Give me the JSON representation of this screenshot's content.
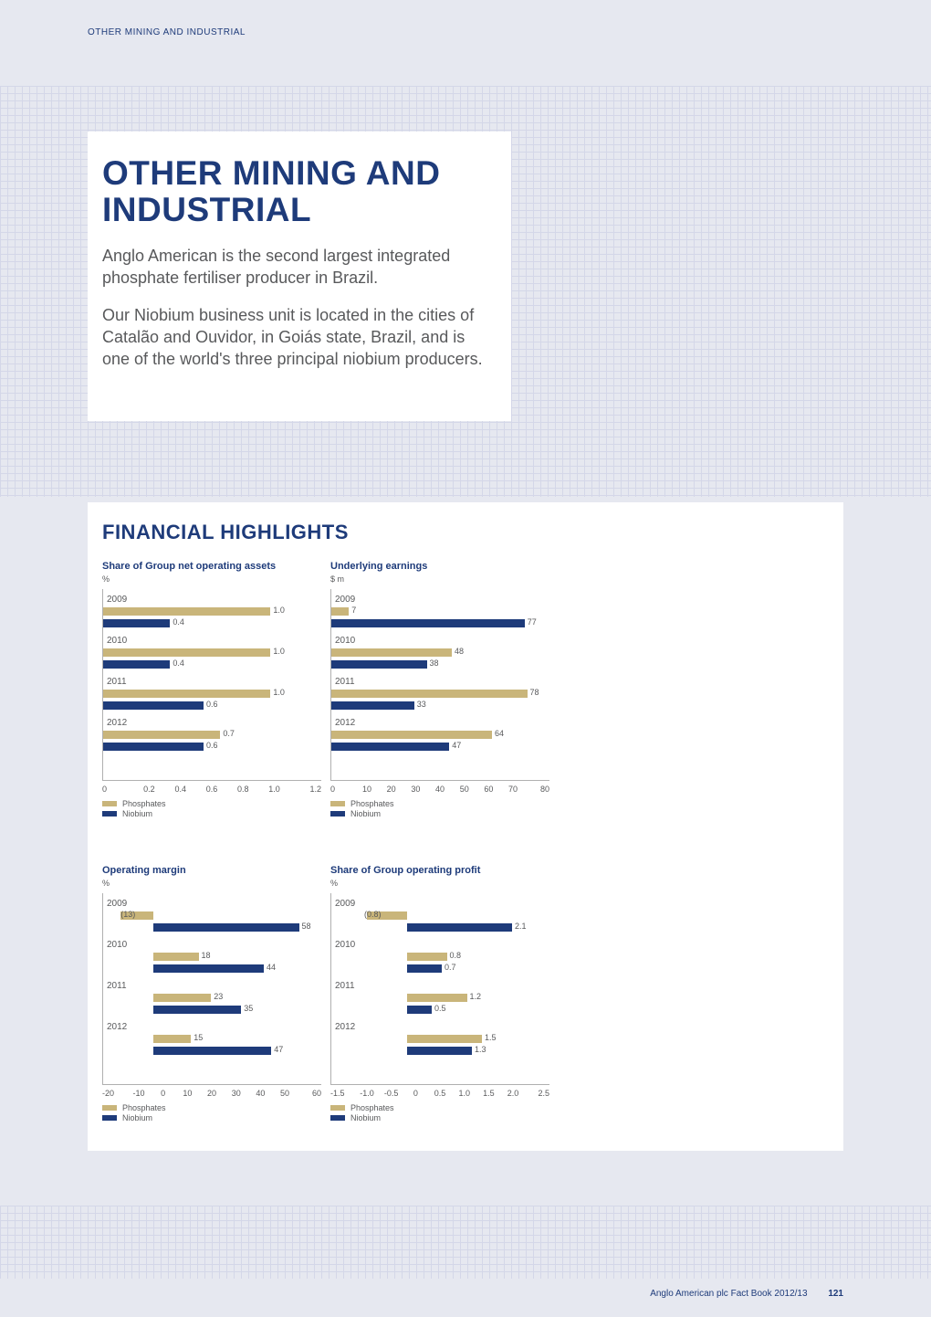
{
  "header": {
    "label": "OTHER MINING AND INDUSTRIAL"
  },
  "title_box": {
    "title": "OTHER MINING AND INDUSTRIAL",
    "para1": "Anglo American is the second largest integrated phosphate fertiliser producer in Brazil.",
    "para2": "Our Niobium business unit is located in the cities of Catalão and Ouvidor, in Goiás state, Brazil, and is one of the world's three principal niobium producers."
  },
  "highlights": {
    "heading": "FINANCIAL HIGHLIGHTS"
  },
  "colors": {
    "phosphates": "#c9b57a",
    "niobium": "#1e3b7a",
    "heading": "#1e3b7a",
    "text": "#58595b",
    "page_bg": "#e6e8f0"
  },
  "legend": {
    "phosphates": "Phosphates",
    "niobium": "Niobium"
  },
  "charts": [
    {
      "id": "net_assets",
      "title": "Share of Group net operating assets",
      "unit": "%",
      "xmin": 0,
      "xmax": 1.2,
      "xticks": [
        "0",
        "0.2",
        "0.4",
        "0.6",
        "0.8",
        "1.0",
        "1.2"
      ],
      "years": [
        {
          "year": "2009",
          "phos": 1.0,
          "niob": 0.4,
          "phos_label": "1.0",
          "niob_label": "0.4"
        },
        {
          "year": "2010",
          "phos": 1.0,
          "niob": 0.4,
          "phos_label": "1.0",
          "niob_label": "0.4"
        },
        {
          "year": "2011",
          "phos": 1.0,
          "niob": 0.6,
          "phos_label": "1.0",
          "niob_label": "0.6"
        },
        {
          "year": "2012",
          "phos": 0.7,
          "niob": 0.6,
          "phos_label": "0.7",
          "niob_label": "0.6"
        }
      ]
    },
    {
      "id": "earnings",
      "title": "Underlying earnings",
      "unit": "$ m",
      "xmin": 0,
      "xmax": 80,
      "xticks": [
        "0",
        "10",
        "20",
        "30",
        "40",
        "50",
        "60",
        "70",
        "80"
      ],
      "years": [
        {
          "year": "2009",
          "phos": 7,
          "niob": 77,
          "phos_label": "7",
          "niob_label": "77"
        },
        {
          "year": "2010",
          "phos": 48,
          "niob": 38,
          "phos_label": "48",
          "niob_label": "38"
        },
        {
          "year": "2011",
          "phos": 78,
          "niob": 33,
          "phos_label": "78",
          "niob_label": "33"
        },
        {
          "year": "2012",
          "phos": 64,
          "niob": 47,
          "phos_label": "64",
          "niob_label": "47"
        }
      ]
    },
    {
      "id": "margin",
      "title": "Operating margin",
      "unit": "%",
      "xmin": -20,
      "xmax": 60,
      "xticks": [
        "-20",
        "-10",
        "0",
        "10",
        "20",
        "30",
        "40",
        "50",
        "60"
      ],
      "years": [
        {
          "year": "2009",
          "phos": -13,
          "niob": 58,
          "phos_label": "(13)",
          "niob_label": "58"
        },
        {
          "year": "2010",
          "phos": 18,
          "niob": 44,
          "phos_label": "18",
          "niob_label": "44"
        },
        {
          "year": "2011",
          "phos": 23,
          "niob": 35,
          "phos_label": "23",
          "niob_label": "35"
        },
        {
          "year": "2012",
          "phos": 15,
          "niob": 47,
          "phos_label": "15",
          "niob_label": "47"
        }
      ]
    },
    {
      "id": "op_profit",
      "title": "Share of Group operating profit",
      "unit": "%",
      "xmin": -1.5,
      "xmax": 2.5,
      "xticks": [
        "-1.5",
        "-1.0",
        "-0.5",
        "0",
        "0.5",
        "1.0",
        "1.5",
        "2.0",
        "2.5"
      ],
      "years": [
        {
          "year": "2009",
          "phos": -0.8,
          "niob": 2.1,
          "phos_label": "(0.8)",
          "niob_label": "2.1"
        },
        {
          "year": "2010",
          "phos": 0.8,
          "niob": 0.7,
          "phos_label": "0.8",
          "niob_label": "0.7"
        },
        {
          "year": "2011",
          "phos": 1.2,
          "niob": 0.5,
          "phos_label": "1.2",
          "niob_label": "0.5"
        },
        {
          "year": "2012",
          "phos": 1.5,
          "niob": 1.3,
          "phos_label": "1.5",
          "niob_label": "1.3"
        }
      ]
    }
  ],
  "footer": {
    "text": "Anglo American plc  Fact Book 2012/13",
    "page": "121"
  }
}
